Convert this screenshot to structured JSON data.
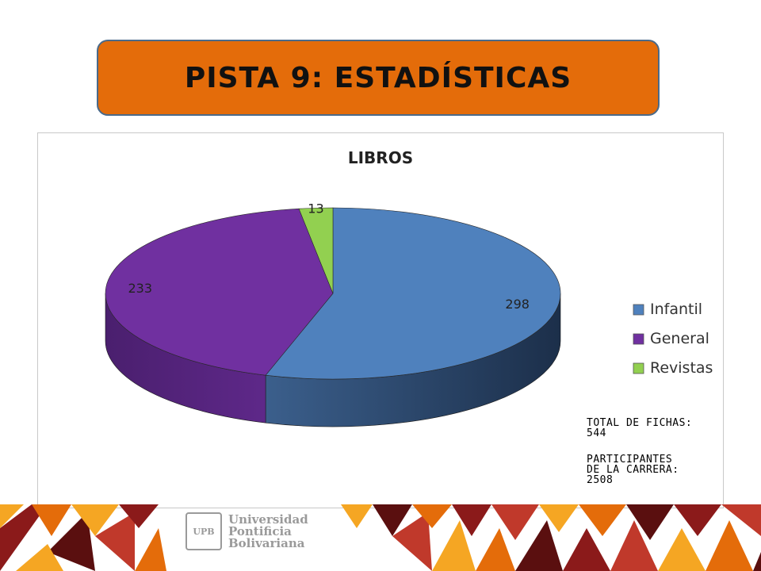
{
  "slide": {
    "title": "PISTA 9: ESTADÍSTICAS",
    "notes": {
      "total_label": "TOTAL DE FICHAS:",
      "total_value": "544",
      "participants_label_1": "PARTICIPANTES",
      "participants_label_2": "DE LA CARRERA:",
      "participants_value": "2508"
    },
    "logo": {
      "line1": "Universidad",
      "line2": "Pontificia",
      "line3": "Bolivariana"
    }
  },
  "colors": {
    "title_bg": "#e46c0a",
    "infantil": "#4f81bd",
    "general": "#7030a0",
    "revistas": "#92d050"
  },
  "chart_data": {
    "type": "pie",
    "title": "LIBROS",
    "categories": [
      "Infantil",
      "General",
      "Revistas"
    ],
    "values": [
      298,
      233,
      13
    ],
    "data_labels": [
      "298",
      "233",
      "13"
    ],
    "colors": [
      "#4f81bd",
      "#7030a0",
      "#92d050"
    ],
    "legend": {
      "position": "right",
      "entries": [
        "Infantil",
        "General",
        "Revistas"
      ]
    },
    "style": "3d"
  }
}
